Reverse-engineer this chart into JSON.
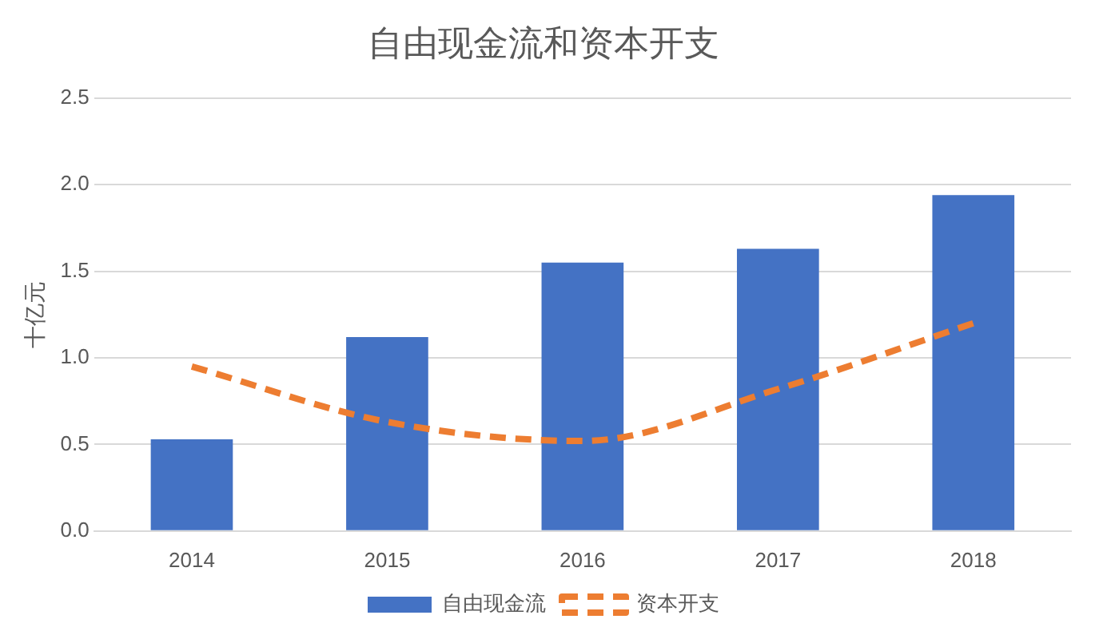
{
  "chart_data": {
    "type": "bar",
    "title": "自由现金流和资本开支",
    "ylabel": "十亿元",
    "categories": [
      "2014",
      "2015",
      "2016",
      "2017",
      "2018"
    ],
    "series": [
      {
        "name": "自由现金流",
        "color": "#4472c4",
        "values": [
          0.53,
          1.12,
          1.55,
          1.63,
          1.94
        ]
      },
      {
        "name": "资本开支",
        "type": "line",
        "color": "#ed7d31",
        "values": [
          0.95,
          0.63,
          0.52,
          0.82,
          1.2
        ],
        "line_style": "dashed"
      }
    ],
    "ylim": [
      0,
      2.5
    ],
    "yticks": [
      {
        "value": 0,
        "label": "0.0"
      },
      {
        "value": 0.5,
        "label": "0.5"
      },
      {
        "value": 1,
        "label": "1.0"
      },
      {
        "value": 1.5,
        "label": "1.5"
      },
      {
        "value": 2,
        "label": "2.0"
      },
      {
        "value": 2.5,
        "label": "2.5"
      }
    ],
    "grid": "y",
    "legend": "bottom",
    "marker": "none"
  }
}
